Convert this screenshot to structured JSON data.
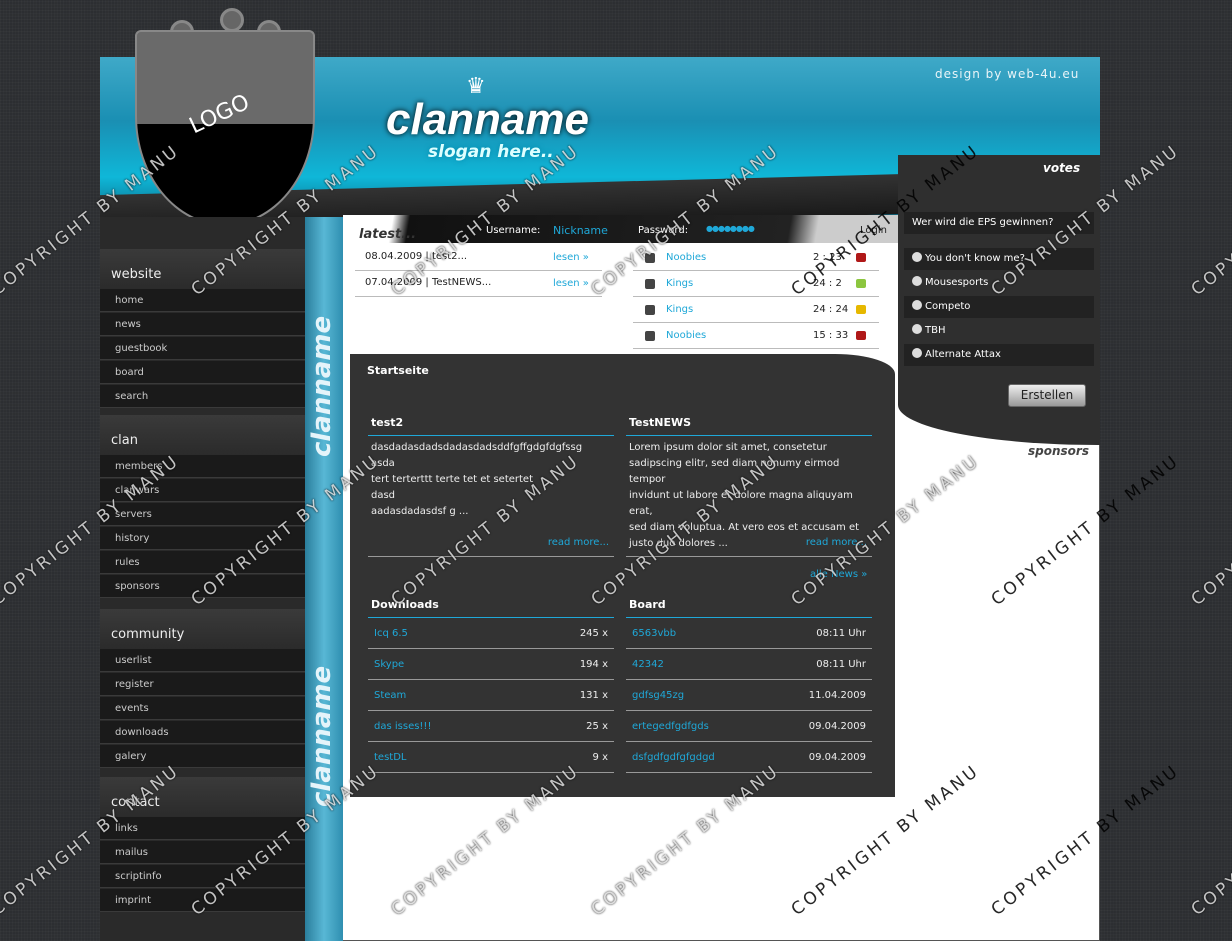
{
  "header": {
    "credit": "design by web-4u.eu",
    "clanname": "clanname",
    "slogan": "slogan here..",
    "logo": "LOGO",
    "crown_icon": "crown-icon"
  },
  "sidebar": {
    "sections": [
      {
        "title": "website",
        "items": [
          "home",
          "news",
          "guestbook",
          "board",
          "search"
        ]
      },
      {
        "title": "clan",
        "items": [
          "members",
          "clanwars",
          "servers",
          "history",
          "rules",
          "sponsors"
        ]
      },
      {
        "title": "community",
        "items": [
          "userlist",
          "register",
          "events",
          "downloads",
          "galery"
        ]
      },
      {
        "title": "contact",
        "items": [
          "links",
          "mailus",
          "scriptinfo",
          "imprint"
        ]
      }
    ],
    "strip_text": "clanname"
  },
  "latest": {
    "title": "latest...",
    "username_label": "Username:",
    "username_value": "Nickname",
    "password_label": "Password:",
    "password_value": "●●●●●●●●",
    "login": "Login",
    "news": [
      {
        "text": "08.04.2009 | test2...",
        "link": "lesen »"
      },
      {
        "text": "07.04.2009 | TestNEWS...",
        "link": "lesen »"
      }
    ],
    "wars": [
      {
        "team": "Noobies",
        "score": "2 : 23",
        "result": "loss"
      },
      {
        "team": "Kings",
        "score": "24 : 2",
        "result": "win"
      },
      {
        "team": "Kings",
        "score": "24 : 24",
        "result": "draw"
      },
      {
        "team": "Noobies",
        "score": "15 : 33",
        "result": "loss"
      }
    ],
    "result_colors": {
      "loss": "#b01818",
      "win": "#8cc63f",
      "draw": "#e6b800"
    }
  },
  "main": {
    "title": "Startseite",
    "news": [
      {
        "title": "test2",
        "body": [
          "dasdadasdadsdadasdadsddfgffgdgfdgfssg",
          "asda",
          "tert terterttt terte tet et setertet",
          "dasd",
          "aadasdadasdsf g ..."
        ],
        "more": "read more..."
      },
      {
        "title": "TestNEWS",
        "body": [
          "Lorem ipsum dolor sit amet, consetetur",
          "sadipscing elitr, sed diam nonumy eirmod tempor",
          "invidunt ut labore et dolore magna aliquyam erat,",
          "sed diam voluptua. At vero eos et accusam et",
          "justo duo dolores ..."
        ],
        "more": "read more..."
      }
    ],
    "all_news": "alle News »",
    "downloads": {
      "title": "Downloads",
      "rows": [
        {
          "name": "Icq 6.5",
          "count": "245 x"
        },
        {
          "name": "Skype",
          "count": "194 x"
        },
        {
          "name": "Steam",
          "count": "131 x"
        },
        {
          "name": "das isses!!!",
          "count": "25 x"
        },
        {
          "name": "testDL",
          "count": "9 x"
        }
      ]
    },
    "board": {
      "title": "Board",
      "rows": [
        {
          "name": "6563vbb",
          "time": "08:11 Uhr"
        },
        {
          "name": "42342",
          "time": "08:11 Uhr"
        },
        {
          "name": "gdfsg45zg",
          "time": "11.04.2009"
        },
        {
          "name": "ertegedfgdfgds",
          "time": "09.04.2009"
        },
        {
          "name": "dsfgdfgdfgfgdgd",
          "time": "09.04.2009"
        }
      ]
    }
  },
  "votes": {
    "title": "votes",
    "question": "Wer wird die EPS gewinnen?",
    "options": [
      "You don't know me?",
      "Mousesports",
      "Competo",
      "TBH",
      "Alternate Attax"
    ],
    "button": "Erstellen",
    "sponsors": "sponsors"
  },
  "watermark": "COPYRIGHT BY MANU"
}
